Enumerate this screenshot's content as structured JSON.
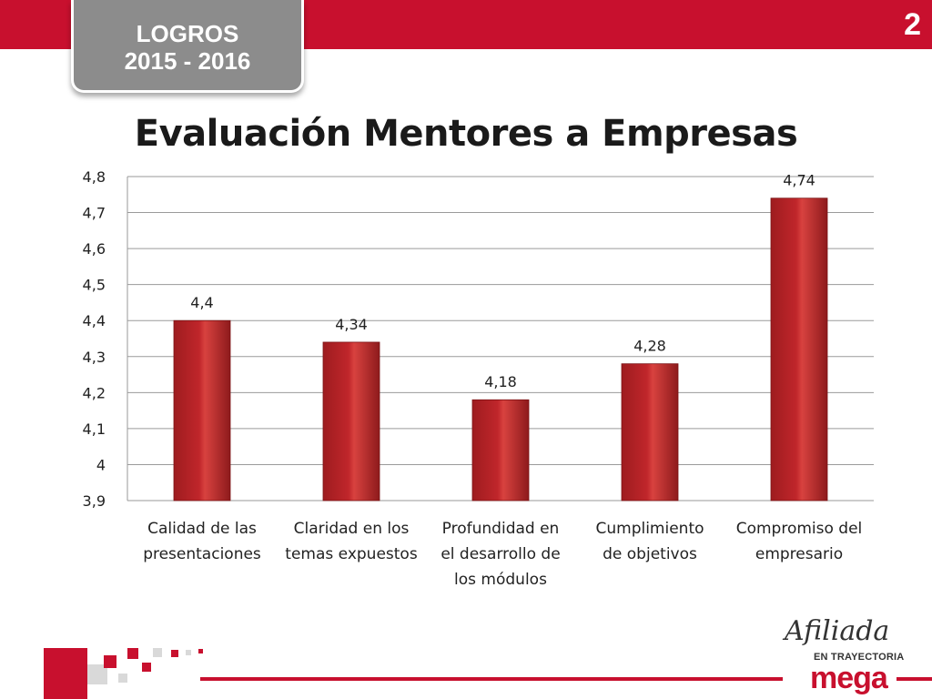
{
  "header": {
    "badge_line1": "LOGROS",
    "badge_line2": "2015 - 2016",
    "page_number": "2"
  },
  "title": "Evaluación Mentores a Empresas",
  "footer": {
    "logo_script": "Afiliada",
    "logo_tagline": "EN TRAYECTORIA",
    "logo_brand": "mega"
  },
  "colors": {
    "accent": "#c8102e",
    "bar": "#c0262b",
    "badge": "#8c8c8c"
  },
  "chart_data": {
    "type": "bar",
    "title": "Evaluación Mentores a Empresas",
    "categories": [
      [
        "Calidad de las",
        "presentaciones"
      ],
      [
        "Claridad en los",
        "temas expuestos"
      ],
      [
        "Profundidad en",
        "el desarrollo de",
        "los módulos"
      ],
      [
        "Cumplimiento",
        "de objetivos"
      ],
      [
        "Compromiso del",
        "empresario"
      ]
    ],
    "values": [
      4.4,
      4.34,
      4.18,
      4.28,
      4.74
    ],
    "value_labels": [
      "4,4",
      "4,34",
      "4,18",
      "4,28",
      "4,74"
    ],
    "ylim": [
      3.9,
      4.8
    ],
    "yticks": [
      3.9,
      4.0,
      4.1,
      4.2,
      4.3,
      4.4,
      4.5,
      4.6,
      4.7,
      4.8
    ],
    "ytick_labels": [
      "3,9",
      "4",
      "4,1",
      "4,2",
      "4,3",
      "4,4",
      "4,5",
      "4,6",
      "4,7",
      "4,8"
    ],
    "grid": true,
    "legend": "none"
  }
}
